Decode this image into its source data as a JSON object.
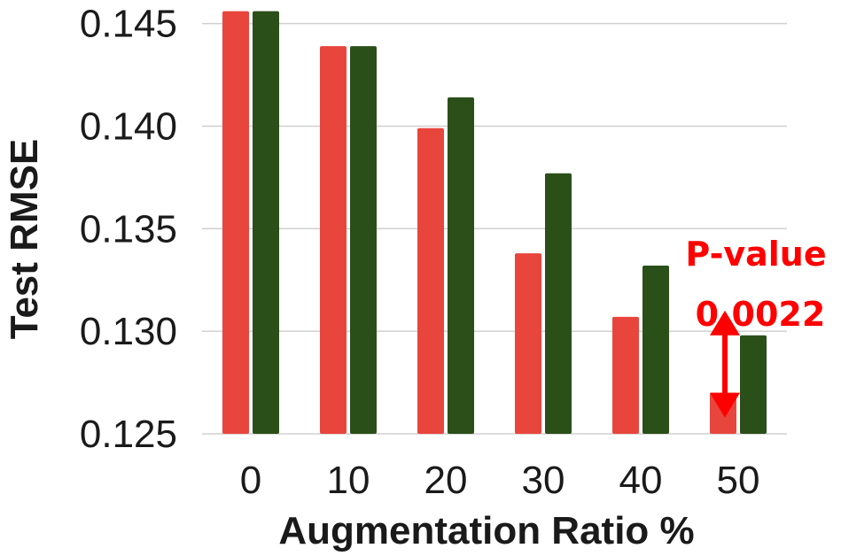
{
  "chart_data": {
    "type": "bar",
    "title": "",
    "xlabel": "Augmentation Ratio %",
    "ylabel": "Test RMSE",
    "categories": [
      "0",
      "10",
      "20",
      "30",
      "40",
      "50"
    ],
    "ylim": [
      0.125,
      0.1455
    ],
    "yticks": [
      "0.125",
      "0.130",
      "0.135",
      "0.140",
      "0.145"
    ],
    "ytick_values": [
      0.125,
      0.13,
      0.135,
      0.14,
      0.145
    ],
    "grid": true,
    "series": [
      {
        "color": "#e8453c",
        "values": [
          0.1456,
          0.1439,
          0.1399,
          0.1338,
          0.1307,
          0.127
        ]
      },
      {
        "color": "#2b4f18",
        "values": [
          0.1456,
          0.1439,
          0.1414,
          0.1377,
          0.1332,
          0.1298
        ]
      }
    ],
    "annotation": {
      "label": "P-value",
      "value": "0.0022",
      "color": "#ff0000",
      "category": "50"
    }
  }
}
